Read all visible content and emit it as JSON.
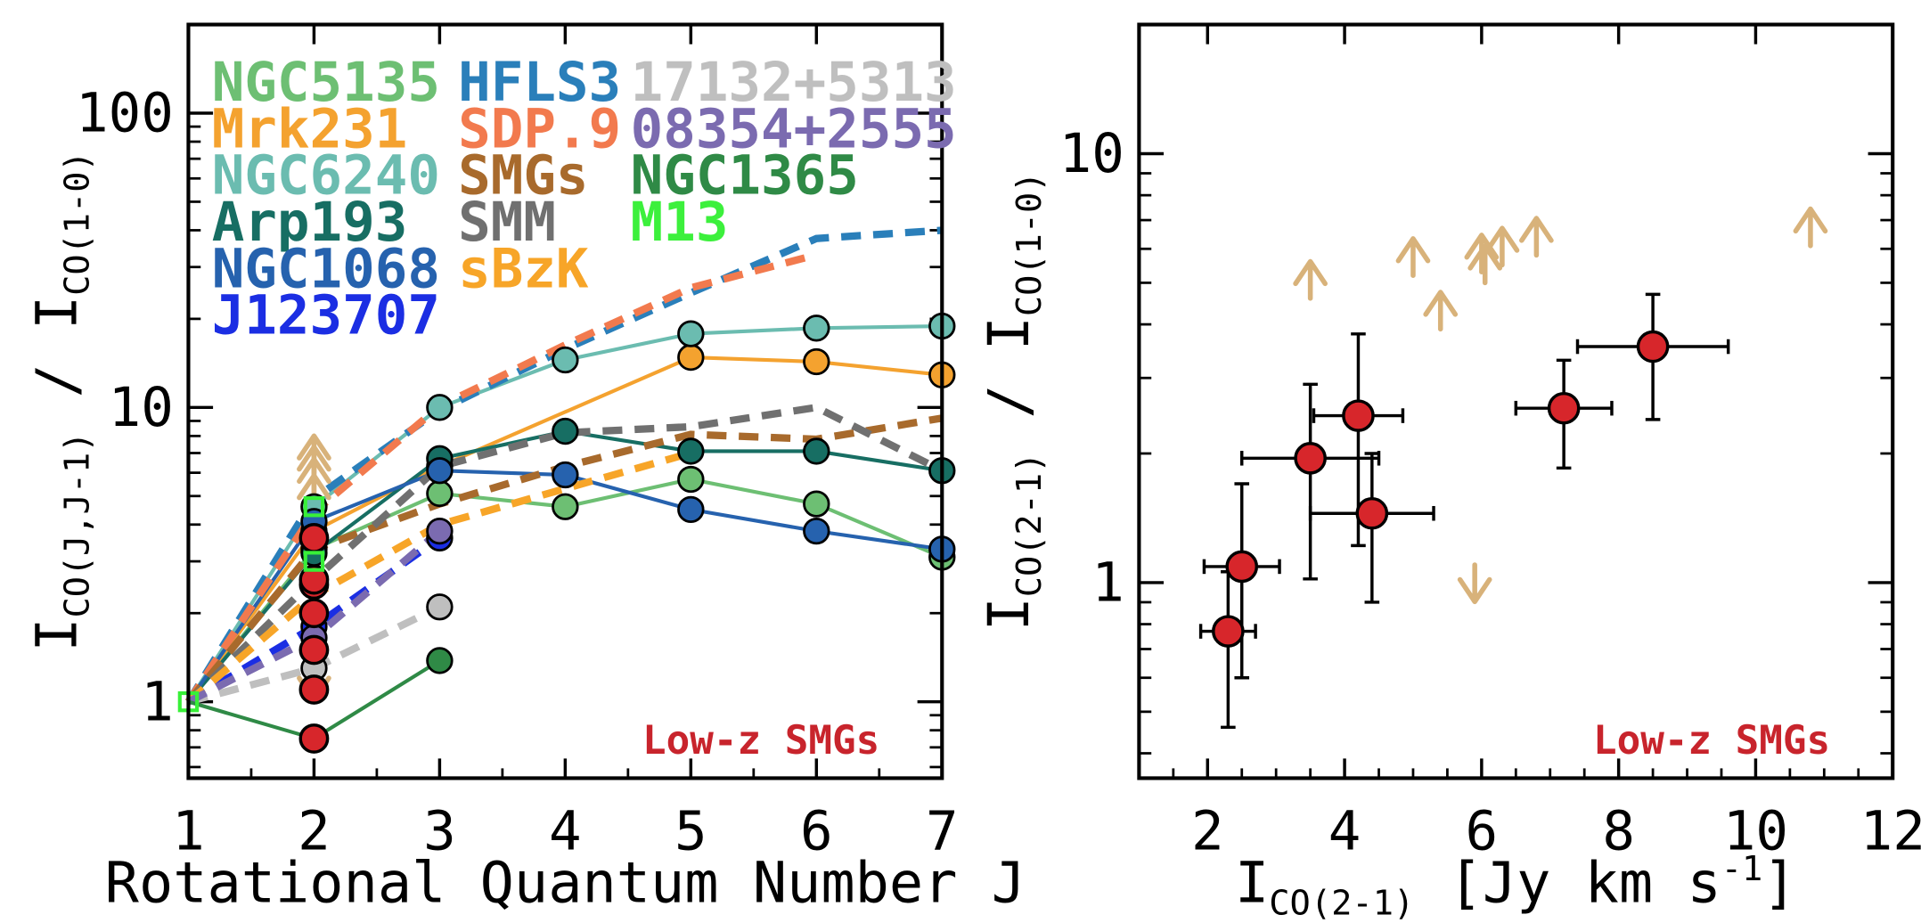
{
  "colors": {
    "smg_point": "#d7262b",
    "smg_label": "#c8242c",
    "limit_arrow": "#d8b27a",
    "axis": "#000000",
    "m13_square": "#38f038"
  },
  "chart_data": [
    {
      "type": "line",
      "title": "",
      "xlabel": "Rotational Quantum Number J",
      "ylabel_main": "I",
      "ylabel_sub_num": "CO(J,J-1)",
      "ylabel_sep": " / ",
      "ylabel_sub_den": "CO(1-0)",
      "yscale": "log",
      "xlim": [
        1,
        7
      ],
      "ylim": [
        0.55,
        200
      ],
      "xticks": [
        1,
        2,
        3,
        4,
        5,
        6,
        7
      ],
      "xtick_labels": [
        "1",
        "2",
        "3",
        "4",
        "5",
        "6",
        "7"
      ],
      "yticks": [
        1,
        10,
        100
      ],
      "ytick_labels": [
        "1",
        "10",
        "100"
      ],
      "note": "Low-z SMGs",
      "legend": [
        {
          "name": "NGC5135",
          "color": "#6dbf73"
        },
        {
          "name": "Mrk231",
          "color": "#f4a22f"
        },
        {
          "name": "NGC6240",
          "color": "#6bbcb0"
        },
        {
          "name": "Arp193",
          "color": "#176e63"
        },
        {
          "name": "NGC1068",
          "color": "#2662ae"
        },
        {
          "name": "J123707",
          "color": "#1b2ee3"
        },
        {
          "name": "HFLS3",
          "color": "#2a7fba"
        },
        {
          "name": "SDP.9",
          "color": "#f27a4e"
        },
        {
          "name": "SMGs",
          "color": "#a86a2c"
        },
        {
          "name": "SMM",
          "color": "#707070"
        },
        {
          "name": "sBzK",
          "color": "#f7a528"
        },
        {
          "name": "17132+5313",
          "color": "#bfbfbf"
        },
        {
          "name": "08354+2555",
          "color": "#7b6bb0"
        },
        {
          "name": "NGC1365",
          "color": "#2f8a46"
        },
        {
          "name": "M13",
          "color": "#3cf03c"
        }
      ],
      "series": [
        {
          "name": "NGC5135",
          "style": "solid",
          "markers": true,
          "x": [
            1,
            2,
            3,
            4,
            5,
            6,
            7
          ],
          "y": [
            1,
            3.3,
            5.1,
            4.6,
            5.7,
            4.7,
            3.1
          ]
        },
        {
          "name": "Mrk231",
          "style": "solid",
          "markers": true,
          "x": [
            1,
            2,
            3,
            5,
            6,
            7
          ],
          "y": [
            1,
            3.8,
            6.3,
            14.8,
            14.3,
            12.9
          ]
        },
        {
          "name": "NGC6240",
          "style": "solid",
          "markers": true,
          "x": [
            1,
            2,
            3,
            4,
            5,
            6,
            7
          ],
          "y": [
            1,
            4.6,
            10,
            14.5,
            17.8,
            18.6,
            18.9
          ]
        },
        {
          "name": "Arp193",
          "style": "solid",
          "markers": true,
          "x": [
            1,
            2,
            3,
            4,
            5,
            6,
            7
          ],
          "y": [
            1,
            3.2,
            6.7,
            8.3,
            7.1,
            7.1,
            6.1
          ]
        },
        {
          "name": "NGC1068",
          "style": "solid",
          "markers": true,
          "x": [
            1,
            2,
            3,
            4,
            5,
            6,
            7
          ],
          "y": [
            1,
            4.1,
            6.1,
            5.9,
            4.5,
            3.8,
            3.3
          ]
        },
        {
          "name": "J123707",
          "style": "dashed",
          "markers": true,
          "x": [
            1,
            2,
            3
          ],
          "y": [
            1,
            1.8,
            3.6
          ]
        },
        {
          "name": "HFLS3",
          "style": "dashed",
          "markers": false,
          "x": [
            1,
            2,
            3,
            4,
            5,
            6,
            7
          ],
          "y": [
            1,
            4.9,
            9.8,
            15.8,
            24.5,
            37.5,
            40
          ]
        },
        {
          "name": "SDP.9",
          "style": "dashed",
          "markers": false,
          "x": [
            1,
            2,
            3,
            4,
            5,
            6
          ],
          "y": [
            1,
            4.4,
            10.1,
            16.3,
            25.5,
            33
          ]
        },
        {
          "name": "SMGs",
          "style": "dashed",
          "markers": false,
          "x": [
            1,
            2,
            3,
            4,
            5,
            6,
            7
          ],
          "y": [
            1,
            3.3,
            4.7,
            6.3,
            8.1,
            7.8,
            9.2
          ]
        },
        {
          "name": "SMM",
          "style": "dashed",
          "markers": false,
          "x": [
            1,
            2,
            3,
            4,
            5,
            6,
            7
          ],
          "y": [
            1,
            2.6,
            6.3,
            8.2,
            8.6,
            10,
            6.1
          ]
        },
        {
          "name": "sBzK",
          "style": "dashed",
          "markers": false,
          "x": [
            1,
            2,
            3,
            4,
            5
          ],
          "y": [
            1,
            2.3,
            4,
            5.3,
            7
          ]
        },
        {
          "name": "17132+5313",
          "style": "dashed",
          "markers": true,
          "x": [
            1,
            2,
            3
          ],
          "y": [
            1,
            1.3,
            2.1
          ]
        },
        {
          "name": "08354+2555",
          "style": "dashed",
          "markers": true,
          "x": [
            1,
            2,
            3
          ],
          "y": [
            1,
            1.65,
            3.8
          ]
        },
        {
          "name": "NGC1365",
          "style": "solid",
          "markers": true,
          "x": [
            1,
            2,
            3
          ],
          "y": [
            1,
            0.75,
            1.38
          ]
        }
      ],
      "m13_points": {
        "x": [
          1,
          2,
          2
        ],
        "y": [
          1,
          4.6,
          3.0
        ]
      },
      "smg_points": {
        "x": [
          2,
          2,
          2,
          2,
          2,
          2,
          2
        ],
        "y": [
          0.75,
          1.1,
          1.5,
          2.0,
          2.5,
          2.6,
          3.6
        ]
      },
      "limits": [
        {
          "x": 2,
          "y": 5.0,
          "dir": "up"
        },
        {
          "x": 2,
          "y": 5.5,
          "dir": "up"
        },
        {
          "x": 2,
          "y": 6.0,
          "dir": "up"
        },
        {
          "x": 2,
          "y": 4.4,
          "dir": "up"
        },
        {
          "x": 2,
          "y": 1.35,
          "dir": "down"
        }
      ]
    },
    {
      "type": "scatter",
      "title": "",
      "xlabel_main": "I",
      "xlabel_sub": "CO(2-1)",
      "xlabel_rest": " [Jy km s",
      "xlabel_sup": "-1",
      "xlabel_end": "]",
      "ylabel_main": "I",
      "ylabel_sub_num": "CO(2-1)",
      "ylabel_sep": " / ",
      "ylabel_sub_den": "CO(1-0)",
      "yscale": "log",
      "xlim": [
        1,
        12
      ],
      "ylim": [
        0.35,
        20
      ],
      "xticks": [
        2,
        4,
        6,
        8,
        10,
        12
      ],
      "xtick_labels": [
        "2",
        "4",
        "6",
        "8",
        "10",
        "12"
      ],
      "yticks": [
        1,
        10
      ],
      "ytick_labels": [
        "1",
        "10"
      ],
      "note": "Low-z SMGs",
      "points": [
        {
          "x": 2.3,
          "y": 0.77,
          "xerr": 0.4,
          "ylo": 0.46,
          "yhi": 1.06
        },
        {
          "x": 2.5,
          "y": 1.09,
          "xerr": 0.55,
          "ylo": 0.6,
          "yhi": 1.7
        },
        {
          "x": 3.5,
          "y": 1.95,
          "xerr": 1.0,
          "ylo": 1.02,
          "yhi": 2.9
        },
        {
          "x": 4.2,
          "y": 2.45,
          "xerr": 0.65,
          "ylo": 1.22,
          "yhi": 3.8
        },
        {
          "x": 4.4,
          "y": 1.45,
          "xerr": 0.9,
          "ylo": 0.9,
          "yhi": 2.0
        },
        {
          "x": 7.2,
          "y": 2.55,
          "xerr": 0.7,
          "ylo": 1.85,
          "yhi": 3.3
        },
        {
          "x": 8.5,
          "y": 3.55,
          "xerr": 1.1,
          "ylo": 2.4,
          "yhi": 4.7
        }
      ],
      "limits": [
        {
          "x": 3.5,
          "y": 4.6,
          "dir": "up"
        },
        {
          "x": 5.0,
          "y": 5.2,
          "dir": "up"
        },
        {
          "x": 5.4,
          "y": 3.9,
          "dir": "up"
        },
        {
          "x": 6.0,
          "y": 5.3,
          "dir": "up"
        },
        {
          "x": 6.05,
          "y": 5.0,
          "dir": "up"
        },
        {
          "x": 6.3,
          "y": 5.5,
          "dir": "up"
        },
        {
          "x": 6.8,
          "y": 5.8,
          "dir": "up"
        },
        {
          "x": 10.8,
          "y": 6.1,
          "dir": "up"
        },
        {
          "x": 5.9,
          "y": 1.1,
          "dir": "down"
        }
      ]
    }
  ]
}
